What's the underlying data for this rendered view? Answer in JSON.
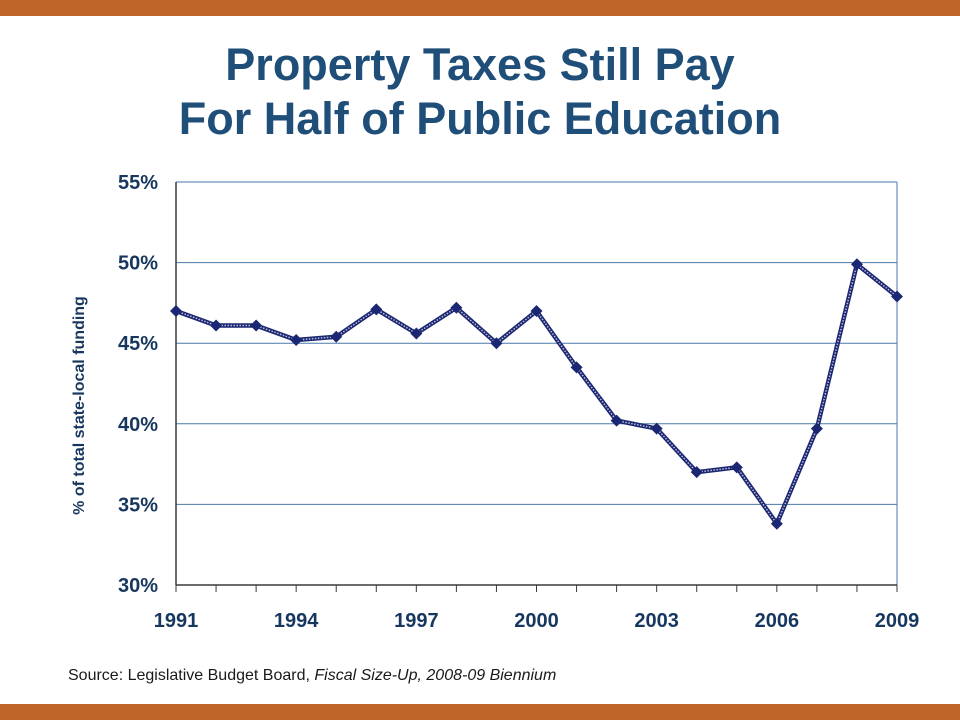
{
  "slide": {
    "title_line1": "Property Taxes Still Pay",
    "title_line2": "For Half of Public Education",
    "source_prefix": "Source:  Legislative Budget Board, ",
    "source_title": "Fiscal Size-Up, 2008-09 Biennium"
  },
  "colors": {
    "accent_bar": "#c0652a",
    "title": "#1f4e79",
    "axis_text": "#17375e",
    "gridline": "#4a7aa8",
    "series": "#1c2773"
  },
  "chart_data": {
    "type": "line",
    "title": "",
    "xlabel": "",
    "ylabel": "% of total state-local funding",
    "xlim": [
      1991,
      2009
    ],
    "ylim": [
      30,
      55
    ],
    "y_ticks": [
      30,
      35,
      40,
      45,
      50,
      55
    ],
    "y_tick_labels": [
      "30%",
      "35%",
      "40%",
      "45%",
      "50%",
      "55%"
    ],
    "x_ticks": [
      1991,
      1994,
      1997,
      2000,
      2003,
      2006,
      2009
    ],
    "x_tick_labels": [
      "1991",
      "1994",
      "1997",
      "2000",
      "2003",
      "2006",
      "2009"
    ],
    "grid": true,
    "legend": "none",
    "series": [
      {
        "x": [
          1991,
          1992,
          1993,
          1994,
          1995,
          1996,
          1997,
          1998,
          1999,
          2000,
          2001,
          2002,
          2003,
          2004,
          2005,
          2006,
          2007,
          2008,
          2009
        ],
        "values": [
          47.0,
          46.1,
          46.1,
          45.2,
          45.4,
          47.1,
          45.6,
          47.2,
          45.0,
          47.0,
          43.5,
          40.2,
          39.7,
          37.0,
          37.3,
          33.8,
          39.7,
          49.9,
          47.9
        ]
      }
    ]
  }
}
